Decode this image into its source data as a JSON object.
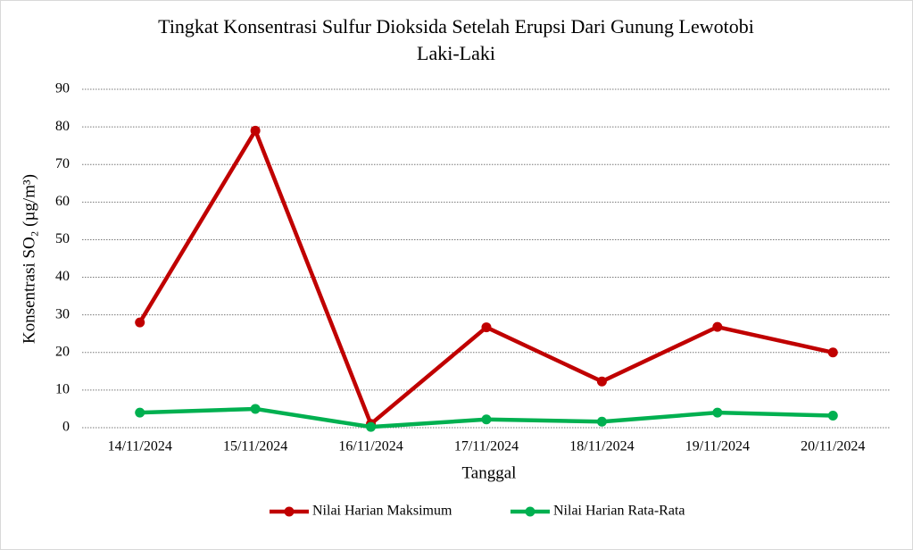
{
  "chart_data": {
    "type": "line",
    "title": [
      "Tingkat Konsentrasi Sulfur Dioksida Setelah Erupsi Dari Gunung Lewotobi",
      "Laki-Laki"
    ],
    "x_label": "Tanggal",
    "y_label": "Konsentrasi SO₂ (µg/m³)",
    "categories": [
      "14/11/2024",
      "15/11/2024",
      "16/11/2024",
      "17/11/2024",
      "18/11/2024",
      "19/11/2024",
      "20/11/2024"
    ],
    "series": [
      {
        "name": "Nilai Harian Maksimum",
        "color": "#c00000",
        "values": [
          28,
          79,
          1,
          26.7,
          12.3,
          26.8,
          20
        ]
      },
      {
        "name": "Nilai Harian Rata-Rata",
        "color": "#00b050",
        "values": [
          4,
          5,
          0.2,
          2.2,
          1.6,
          4,
          3.2
        ]
      }
    ],
    "ylim": [
      0,
      90
    ],
    "yticks": [
      0,
      10,
      20,
      30,
      40,
      50,
      60,
      70,
      80,
      90
    ],
    "grid": true,
    "legend": "bottom"
  }
}
